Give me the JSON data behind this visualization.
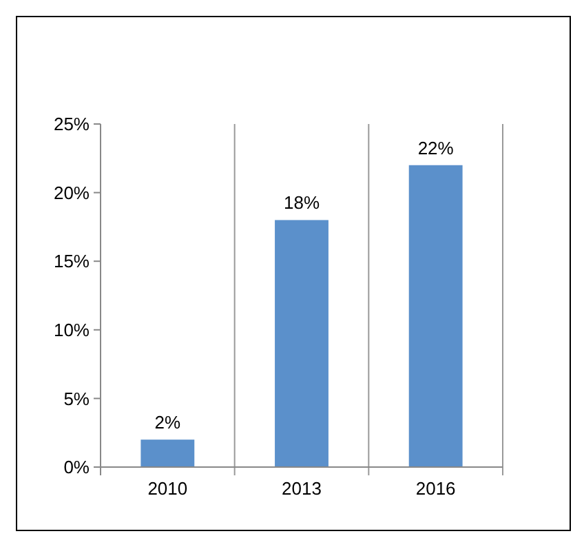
{
  "chart_data": {
    "type": "bar",
    "categories": [
      "2010",
      "2013",
      "2016"
    ],
    "values": [
      2,
      18,
      22
    ],
    "color": "#5b90cb",
    "value_labels": [
      "2%",
      "18%",
      "22%"
    ],
    "ylim": [
      0,
      25
    ],
    "yticks": [
      {
        "value": 0,
        "label": "0%"
      },
      {
        "value": 5,
        "label": "5%"
      },
      {
        "value": 10,
        "label": "10%"
      },
      {
        "value": 15,
        "label": "15%"
      },
      {
        "value": 20,
        "label": "20%"
      },
      {
        "value": 25,
        "label": "25%"
      }
    ],
    "grid": "x"
  }
}
